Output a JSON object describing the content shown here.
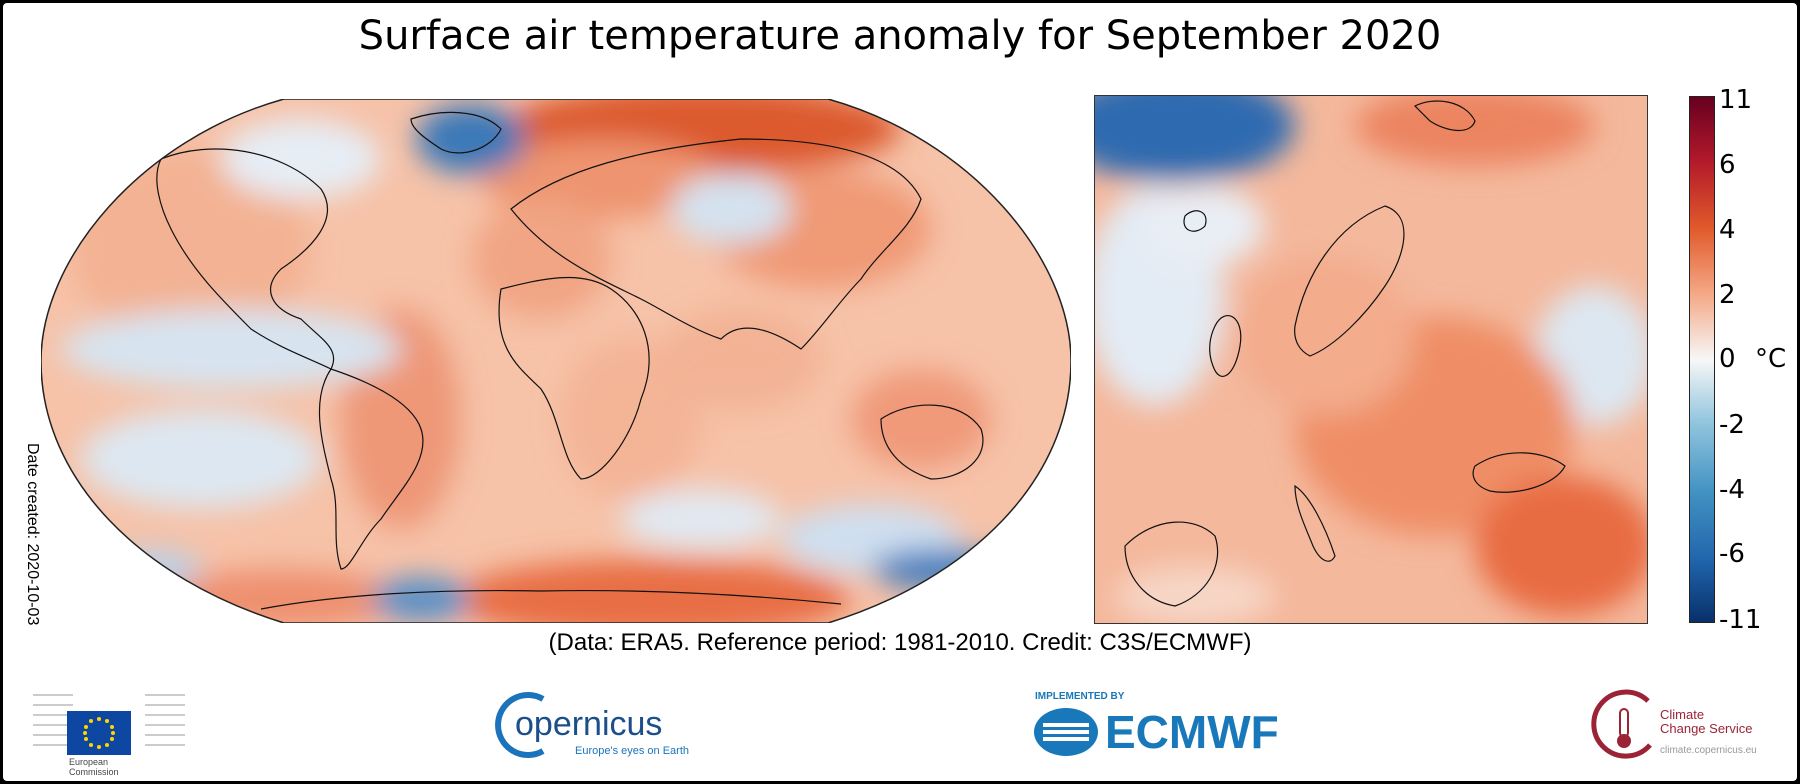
{
  "title": "Surface air temperature anomaly for September 2020",
  "credit": "(Data: ERA5.  Reference period: 1981-2010.  Credit: C3S/ECMWF)",
  "date_created": "Date created: 2020-10-03",
  "colorbar": {
    "unit": "°C",
    "ticks": [
      "11",
      "6",
      "4",
      "2",
      "0",
      "-2",
      "-4",
      "-6",
      "-11"
    ],
    "colors": [
      "#08306b",
      "#2166ac",
      "#4393c3",
      "#92c5de",
      "#f7f7f7",
      "#fddbc7",
      "#f4a582",
      "#e05a2b",
      "#b2182b",
      "#67001f"
    ]
  },
  "logos": {
    "ec": {
      "line1": "European",
      "line2": "Commission"
    },
    "copernicus": {
      "name": "opernicus",
      "tagline": "Europe's eyes on Earth"
    },
    "ecmwf": {
      "implemented": "IMPLEMENTED BY",
      "name": "ECMWF"
    },
    "c3s": {
      "line1": "Climate",
      "line2": "Change Service",
      "line3": "climate.copernicus.eu"
    }
  }
}
